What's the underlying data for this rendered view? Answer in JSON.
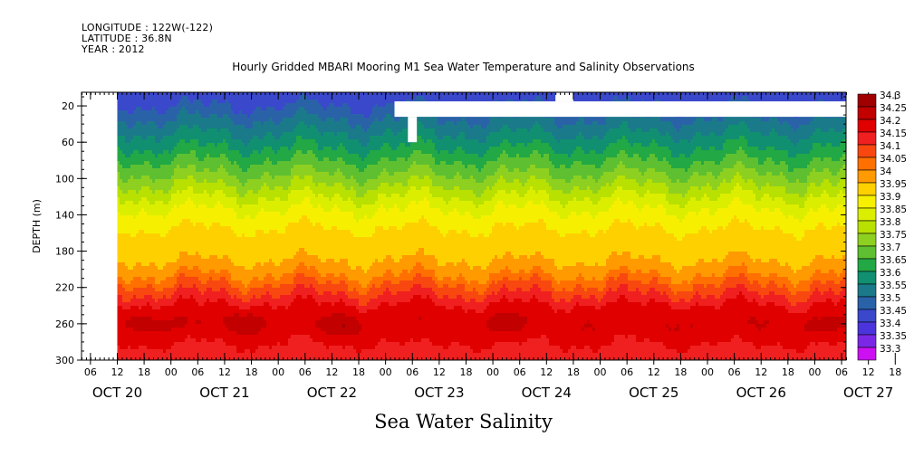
{
  "header": {
    "longitude": "LONGITUDE : 122W(-122)",
    "latitude": "LATITUDE : 36.8N",
    "year": "YEAR : 2012"
  },
  "chart_data": {
    "type": "heatmap",
    "title": "Hourly Gridded MBARI Mooring M1 Sea Water Temperature and Salinity Observations",
    "xlabel": "Sea Water Salinity",
    "ylabel": "DEPTH (m)",
    "x_unit": "hours since 2012-10-20 00:00",
    "xlim": [
      4,
      175
    ],
    "ylim": [
      300,
      5
    ],
    "y_ticks": [
      20,
      60,
      100,
      140,
      180,
      220,
      260,
      300
    ],
    "x_hour_ticks": [
      "06",
      "12",
      "18",
      "00",
      "06",
      "12",
      "18",
      "00",
      "06",
      "12",
      "18",
      "00",
      "06",
      "12",
      "18",
      "00",
      "06",
      "12",
      "18",
      "00",
      "06",
      "12",
      "18",
      "00",
      "06",
      "12",
      "18",
      "00",
      "06",
      "12",
      "18",
      "00",
      "06"
    ],
    "x_day_labels": [
      {
        "label": "OCT 20",
        "hour": 12
      },
      {
        "label": "OCT 21",
        "hour": 36
      },
      {
        "label": "OCT 22",
        "hour": 60
      },
      {
        "label": "OCT 23",
        "hour": 84
      },
      {
        "label": "OCT 24",
        "hour": 108
      },
      {
        "label": "OCT 25",
        "hour": 132
      },
      {
        "label": "OCT 26",
        "hour": 156
      },
      {
        "label": "OCT 27",
        "hour": 180
      }
    ],
    "legend_placement": "right",
    "colorbar_levels": [
      "34.3",
      "34.25",
      "34.2",
      "34.15",
      "34.1",
      "34.05",
      "34",
      "33.95",
      "33.9",
      "33.85",
      "33.8",
      "33.75",
      "33.7",
      "33.65",
      "33.6",
      "33.55",
      "33.5",
      "33.45",
      "33.4",
      "33.35",
      "33.3"
    ],
    "colorbar_colors": [
      "#a00000",
      "#c20000",
      "#e00000",
      "#f02020",
      "#f84810",
      "#ff7000",
      "#ff9a00",
      "#ffd000",
      "#f6f000",
      "#dcee00",
      "#b8e000",
      "#8ed020",
      "#5ec030",
      "#22a845",
      "#109070",
      "#1a7a8a",
      "#2a62a8",
      "#3a48cc",
      "#4c34dc",
      "#7a28e6",
      "#cc10f2"
    ],
    "missing_regions": [
      {
        "x": [
          4,
          12
        ],
        "y": [
          5,
          300
        ]
      },
      {
        "x": [
          74,
          175
        ],
        "y": [
          15,
          32
        ]
      },
      {
        "x": [
          110,
          114
        ],
        "y": [
          5,
          15
        ]
      },
      {
        "x": [
          77,
          79
        ],
        "y": [
          32,
          60
        ]
      }
    ],
    "depth_profile": [
      {
        "depth": 5,
        "salinity": 33.48
      },
      {
        "depth": 20,
        "salinity": 33.5
      },
      {
        "depth": 40,
        "salinity": 33.57
      },
      {
        "depth": 60,
        "salinity": 33.63
      },
      {
        "depth": 80,
        "salinity": 33.7
      },
      {
        "depth": 100,
        "salinity": 33.77
      },
      {
        "depth": 120,
        "salinity": 33.85
      },
      {
        "depth": 140,
        "salinity": 33.92
      },
      {
        "depth": 160,
        "salinity": 33.96
      },
      {
        "depth": 180,
        "salinity": 33.98
      },
      {
        "depth": 200,
        "salinity": 34.02
      },
      {
        "depth": 220,
        "salinity": 34.12
      },
      {
        "depth": 240,
        "salinity": 34.2
      },
      {
        "depth": 260,
        "salinity": 34.22
      },
      {
        "depth": 280,
        "salinity": 34.2
      },
      {
        "depth": 300,
        "salinity": 34.15
      }
    ],
    "core_maxima": [
      {
        "hour": 15,
        "depth": 258,
        "salinity": 34.26
      },
      {
        "hour": 30,
        "depth": 260,
        "salinity": 34.25
      },
      {
        "hour": 40,
        "depth": 258,
        "salinity": 34.25
      },
      {
        "hour": 63,
        "depth": 262,
        "salinity": 34.27
      },
      {
        "hour": 100,
        "depth": 258,
        "salinity": 34.25
      },
      {
        "hour": 146,
        "depth": 260,
        "salinity": 34.25
      },
      {
        "hour": 167,
        "depth": 262,
        "salinity": 34.26
      }
    ]
  }
}
